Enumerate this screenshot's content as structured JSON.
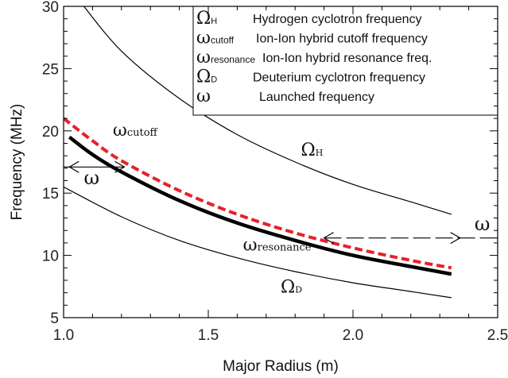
{
  "chart_data": {
    "type": "line",
    "xlabel": "Major Radius (m)",
    "ylabel": "Frequency (MHz)",
    "xlim": [
      1.0,
      2.5
    ],
    "ylim": [
      5,
      30
    ],
    "xticks": [
      "1.0",
      "1.5",
      "2.0",
      "2.5"
    ],
    "yticks": [
      "5",
      "10",
      "15",
      "20",
      "25",
      "30"
    ],
    "grid": false,
    "legend_placement": "top-right",
    "series": [
      {
        "key": "omega_h",
        "color": "#000000",
        "style": "solid-thin",
        "x": [
          1.07,
          1.2,
          1.4,
          1.6,
          1.8,
          2.0,
          2.2,
          2.34
        ],
        "y": [
          30.0,
          26.4,
          22.6,
          19.7,
          17.5,
          15.7,
          14.3,
          13.3
        ],
        "label_main": "Ω",
        "label_sub": "H",
        "label_pos": [
          1.82,
          18.0
        ]
      },
      {
        "key": "omega_cutoff",
        "color": "#e8202a",
        "style": "dashed-thick",
        "x": [
          1.0,
          1.1,
          1.2,
          1.4,
          1.6,
          1.8,
          2.0,
          2.2,
          2.34
        ],
        "y": [
          21.0,
          19.2,
          17.6,
          15.2,
          13.3,
          11.8,
          10.6,
          9.6,
          9.0
        ],
        "label_main": "ω",
        "label_sub": "cutoff",
        "label_pos": [
          1.17,
          19.6
        ]
      },
      {
        "key": "omega_resonance",
        "color": "#000000",
        "style": "solid-thick",
        "x": [
          1.02,
          1.1,
          1.2,
          1.4,
          1.6,
          1.8,
          2.0,
          2.2,
          2.34
        ],
        "y": [
          19.5,
          18.1,
          16.7,
          14.4,
          12.6,
          11.2,
          10.0,
          9.1,
          8.5
        ],
        "label_main": "ω",
        "label_sub": "resonance",
        "label_pos": [
          1.62,
          10.4
        ]
      },
      {
        "key": "omega_d",
        "color": "#000000",
        "style": "solid-thin",
        "x": [
          1.0,
          1.2,
          1.4,
          1.6,
          1.8,
          2.0,
          2.2,
          2.34
        ],
        "y": [
          15.5,
          13.1,
          11.2,
          9.8,
          8.7,
          7.8,
          7.1,
          6.6
        ],
        "label_main": "Ω",
        "label_sub": "D",
        "label_pos": [
          1.75,
          7.0
        ]
      }
    ],
    "annotations": [
      {
        "type": "launched-left",
        "x_start": 1.0,
        "x_end": 1.21,
        "y": 17.1,
        "x_arrow_left": 1.02,
        "x_arrow_right": 1.21,
        "label": "ω",
        "label_pos": [
          1.07,
          15.7
        ]
      },
      {
        "type": "launched-right",
        "x_start": 1.9,
        "x_end": 2.5,
        "y": 11.4,
        "x_arrow_left": 1.9,
        "x_arrow_right": 2.37,
        "label": "ω",
        "label_pos": [
          2.42,
          12.0
        ]
      }
    ],
    "legend": [
      {
        "sym": "Ω",
        "sub": "H",
        "text": "Hydrogen cyclotron frequency"
      },
      {
        "sym": "ω",
        "sub": "cutoff",
        "text": "Ion-Ion hybrid cutoff frequency"
      },
      {
        "sym": "ω",
        "sub": "resonance",
        "text": "Ion-Ion hybrid resonance freq."
      },
      {
        "sym": "Ω",
        "sub": "D",
        "text": "Deuterium cyclotron frequency"
      },
      {
        "sym": "ω",
        "sub": "",
        "text": "Launched frequency"
      }
    ]
  }
}
